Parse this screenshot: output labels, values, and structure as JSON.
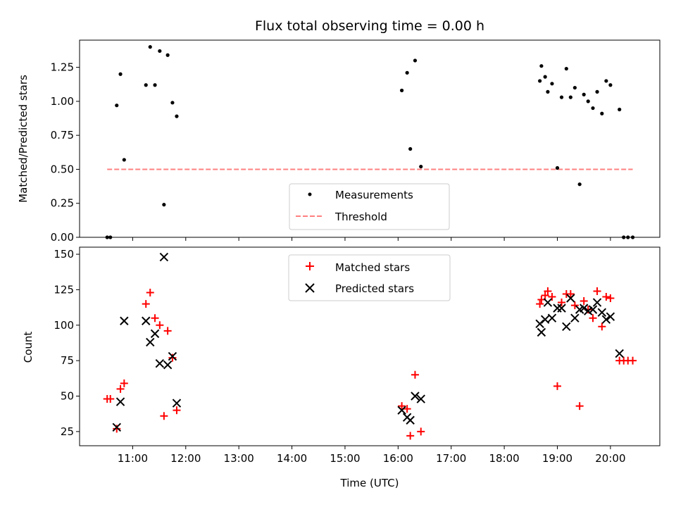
{
  "chart_data": [
    {
      "type": "scatter",
      "title": "Flux total observing time = 0.00 h",
      "xlabel": "",
      "ylabel": "Matched/Predicted stars",
      "ylim": [
        0,
        1.45
      ],
      "yticks": [
        0.0,
        0.25,
        0.5,
        0.75,
        1.0,
        1.25
      ],
      "ytick_labels": [
        "0.00",
        "0.25",
        "0.50",
        "0.75",
        "1.00",
        "1.25"
      ],
      "legend_position": "lower-center",
      "series": [
        {
          "name": "Measurements",
          "marker": "dot",
          "color": "#000000",
          "x": [
            10.52,
            10.58,
            10.7,
            10.77,
            10.84,
            11.25,
            11.33,
            11.42,
            11.51,
            11.59,
            11.66,
            11.75,
            11.83,
            16.07,
            16.17,
            16.23,
            16.32,
            16.43,
            18.67,
            18.7,
            18.77,
            18.82,
            18.9,
            19.0,
            19.08,
            19.17,
            19.25,
            19.33,
            19.42,
            19.5,
            19.58,
            19.67,
            19.75,
            19.84,
            19.92,
            20.0,
            20.17,
            20.25,
            20.33,
            20.42
          ],
          "y": [
            0.0,
            0.0,
            0.97,
            1.2,
            0.57,
            1.12,
            1.4,
            1.12,
            1.37,
            0.24,
            1.34,
            0.99,
            0.89,
            1.08,
            1.21,
            0.65,
            1.3,
            0.52,
            1.15,
            1.26,
            1.18,
            1.07,
            1.13,
            0.51,
            1.03,
            1.24,
            1.03,
            1.1,
            0.39,
            1.05,
            1.0,
            0.95,
            1.07,
            0.91,
            1.15,
            1.12,
            0.94,
            0.0,
            0.0,
            0.0
          ]
        },
        {
          "name": "Threshold",
          "style": "dashed",
          "color": "#ff8080",
          "x": [
            10.52,
            20.42
          ],
          "y": [
            0.5,
            0.5
          ]
        }
      ]
    },
    {
      "type": "scatter",
      "title": "",
      "xlabel": "Time (UTC)",
      "ylabel": "Count",
      "ylim": [
        15,
        155
      ],
      "yticks": [
        25,
        50,
        75,
        100,
        125,
        150
      ],
      "ytick_labels": [
        "25",
        "50",
        "75",
        "100",
        "125",
        "150"
      ],
      "xlim": [
        10.0,
        20.93
      ],
      "xticks": [
        11,
        12,
        13,
        14,
        15,
        16,
        17,
        18,
        19,
        20
      ],
      "xtick_labels": [
        "11:00",
        "12:00",
        "13:00",
        "14:00",
        "15:00",
        "16:00",
        "17:00",
        "18:00",
        "19:00",
        "20:00"
      ],
      "legend_position": "upper-center",
      "series": [
        {
          "name": "Matched stars",
          "marker": "plus",
          "color": "#ff0000",
          "x": [
            10.52,
            10.58,
            10.7,
            10.77,
            10.84,
            11.25,
            11.33,
            11.42,
            11.51,
            11.59,
            11.66,
            11.75,
            11.83,
            16.07,
            16.17,
            16.23,
            16.32,
            16.43,
            18.67,
            18.7,
            18.77,
            18.82,
            18.9,
            19.0,
            19.08,
            19.17,
            19.25,
            19.33,
            19.42,
            19.5,
            19.58,
            19.67,
            19.75,
            19.84,
            19.92,
            20.0,
            20.17,
            20.25,
            20.33,
            20.42
          ],
          "y": [
            48,
            48,
            27,
            55,
            59,
            115,
            123,
            105,
            100,
            36,
            96,
            77,
            40,
            43,
            41,
            22,
            65,
            25,
            115,
            118,
            121,
            124,
            120,
            57,
            116,
            122,
            122,
            114,
            43,
            117,
            111,
            105,
            124,
            99,
            120,
            119,
            75,
            75,
            75,
            75
          ]
        },
        {
          "name": "Predicted stars",
          "marker": "x",
          "color": "#000000",
          "x": [
            10.7,
            10.77,
            10.84,
            11.25,
            11.33,
            11.42,
            11.51,
            11.59,
            11.66,
            11.75,
            11.83,
            16.07,
            16.17,
            16.23,
            16.32,
            16.43,
            18.67,
            18.7,
            18.77,
            18.82,
            18.9,
            19.0,
            19.08,
            19.17,
            19.25,
            19.33,
            19.42,
            19.5,
            19.58,
            19.67,
            19.75,
            19.84,
            19.92,
            20.0,
            20.17
          ],
          "y": [
            28,
            46,
            103,
            103,
            88,
            94,
            73,
            148,
            72,
            78,
            45,
            40,
            35,
            33,
            50,
            48,
            101,
            95,
            104,
            116,
            105,
            112,
            112,
            99,
            119,
            105,
            111,
            112,
            110,
            111,
            116,
            109,
            104,
            106,
            80
          ]
        }
      ]
    }
  ]
}
